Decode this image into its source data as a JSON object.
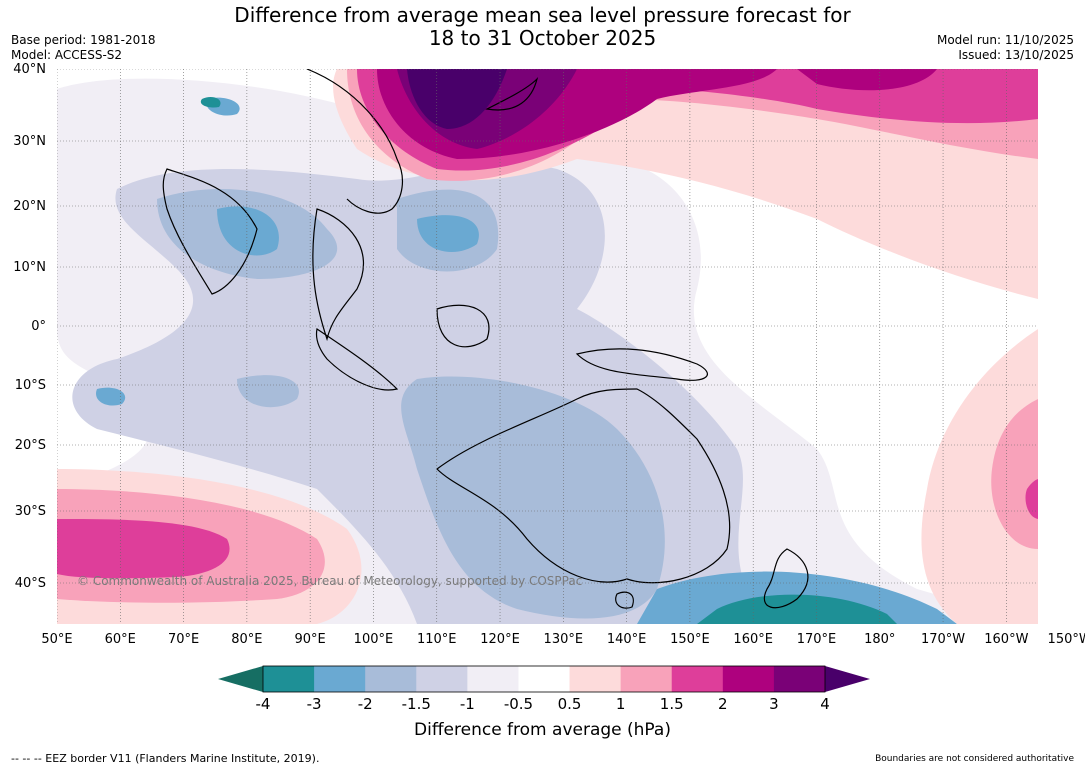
{
  "title": {
    "line1": "Difference from average mean sea level pressure forecast for",
    "line2": "18 to 31 October 2025"
  },
  "meta_left": {
    "base_period": "Base period: 1981-2018",
    "model": "Model: ACCESS-S2"
  },
  "meta_right": {
    "model_run": "Model run: 11/10/2025",
    "issued": "Issued: 13/10/2025"
  },
  "map": {
    "lon_labels": [
      "50°E",
      "60°E",
      "70°E",
      "80°E",
      "90°E",
      "100°E",
      "110°E",
      "120°E",
      "130°E",
      "140°E",
      "150°E",
      "160°E",
      "170°E",
      "180°",
      "170°W",
      "160°W",
      "150°W"
    ],
    "lat_labels": [
      "40°N",
      "30°N",
      "20°N",
      "10°N",
      "0°",
      "10°S",
      "20°S",
      "30°S",
      "40°S"
    ],
    "copyright": "© Commonwealth of Australia 2025, Bureau of Meteorology, supported by COSPPac"
  },
  "colorbar": {
    "ticks": [
      "-4",
      "-3",
      "-2",
      "-1.5",
      "-1",
      "-0.5",
      "0.5",
      "1",
      "1.5",
      "2",
      "3",
      "4"
    ],
    "colors": [
      "#1e9096",
      "#6aa9d2",
      "#a8bcd9",
      "#cfd1e5",
      "#f1eef5",
      "#ffffff",
      "#fddbdb",
      "#f8a2ba",
      "#de3e9a",
      "#ae017e",
      "#7a0177"
    ],
    "under_color": "#166e63",
    "over_color": "#49006a",
    "label": "Difference from average (hPa)"
  },
  "footer": {
    "left": "--  --  -- EEZ border V11 (Flanders Marine Institute, 2019).",
    "right": "Boundaries are not considered authoritative"
  }
}
